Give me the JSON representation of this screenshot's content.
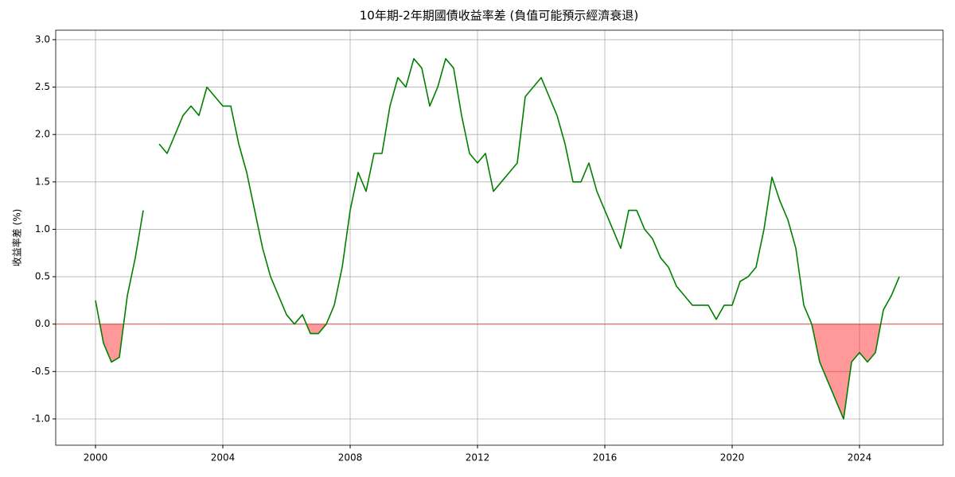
{
  "chart_data": {
    "type": "line",
    "title": "10年期-2年期國債收益率差 (負值可能預示經濟衰退)",
    "y_label": "收益率差 (%)",
    "x": [
      2000.0,
      2000.25,
      2000.5,
      2000.75,
      2001.0,
      2001.25,
      2001.5,
      2001.75,
      2002.0,
      2002.25,
      2002.5,
      2002.75,
      2003.0,
      2003.25,
      2003.5,
      2003.75,
      2004.0,
      2004.25,
      2004.5,
      2004.75,
      2005.0,
      2005.25,
      2005.5,
      2005.75,
      2006.0,
      2006.25,
      2006.5,
      2006.75,
      2007.0,
      2007.25,
      2007.5,
      2007.75,
      2008.0,
      2008.25,
      2008.5,
      2008.75,
      2009.0,
      2009.25,
      2009.5,
      2009.75,
      2010.0,
      2010.25,
      2010.5,
      2010.75,
      2011.0,
      2011.25,
      2011.5,
      2011.75,
      2012.0,
      2012.25,
      2012.5,
      2012.75,
      2013.0,
      2013.25,
      2013.5,
      2013.75,
      2014.0,
      2014.25,
      2014.5,
      2014.75,
      2015.0,
      2015.25,
      2015.5,
      2015.75,
      2016.0,
      2016.25,
      2016.5,
      2016.75,
      2017.0,
      2017.25,
      2017.5,
      2017.75,
      2018.0,
      2018.25,
      2018.5,
      2018.75,
      2019.0,
      2019.25,
      2019.5,
      2019.75,
      2020.0,
      2020.25,
      2020.5,
      2020.75,
      2021.0,
      2021.25,
      2021.5,
      2021.75,
      2022.0,
      2022.25,
      2022.5,
      2022.75,
      2023.0,
      2023.25,
      2023.5,
      2023.75,
      2024.0,
      2024.25,
      2024.5,
      2024.75,
      2025.0,
      2025.25
    ],
    "series": [
      {
        "color": "#008000",
        "negative_fill": "#ff0000",
        "values": [
          0.25,
          -0.2,
          -0.4,
          -0.35,
          0.3,
          0.7,
          1.2,
          null,
          1.9,
          1.8,
          2.0,
          2.2,
          2.3,
          2.2,
          2.5,
          2.4,
          2.3,
          2.3,
          1.9,
          1.6,
          1.2,
          0.8,
          0.5,
          0.3,
          0.1,
          0.0,
          0.1,
          -0.1,
          -0.1,
          0.0,
          0.2,
          0.6,
          1.2,
          1.6,
          1.4,
          1.8,
          1.8,
          2.3,
          2.6,
          2.5,
          2.8,
          2.7,
          2.3,
          2.5,
          2.8,
          2.7,
          2.2,
          1.8,
          1.7,
          1.8,
          1.4,
          1.5,
          1.6,
          1.7,
          2.4,
          2.5,
          2.6,
          2.4,
          2.2,
          1.9,
          1.5,
          1.5,
          1.7,
          1.4,
          1.2,
          1.0,
          0.8,
          1.2,
          1.2,
          1.0,
          0.9,
          0.7,
          0.6,
          0.4,
          0.3,
          0.2,
          0.2,
          0.2,
          0.05,
          0.2,
          0.2,
          0.45,
          0.5,
          0.6,
          1.0,
          1.55,
          1.3,
          1.1,
          0.8,
          0.2,
          0.0,
          -0.4,
          -0.6,
          -0.8,
          -1.0,
          -0.4,
          -0.3,
          -0.4,
          -0.3,
          0.15,
          0.3,
          0.5
        ]
      }
    ],
    "hline": 0,
    "hline_color": "#ff0000",
    "xlim": [
      1998.75,
      2026.625
    ],
    "xticks": [
      2000,
      2004,
      2008,
      2012,
      2016,
      2020,
      2024
    ],
    "ylim": [
      -1.277,
      3.1
    ],
    "yticks": [
      {
        "value": -1.0,
        "label": "-1.0"
      },
      {
        "value": -0.5,
        "label": "-0.5"
      },
      {
        "value": 0.0,
        "label": "0.0"
      },
      {
        "value": 0.5,
        "label": "0.5"
      },
      {
        "value": 1.0,
        "label": "1.0"
      },
      {
        "value": 1.5,
        "label": "1.5"
      },
      {
        "value": 2.0,
        "label": "2.0"
      },
      {
        "value": 2.5,
        "label": "2.5"
      },
      {
        "value": 3.0,
        "label": "3.0"
      }
    ],
    "grid": true
  }
}
